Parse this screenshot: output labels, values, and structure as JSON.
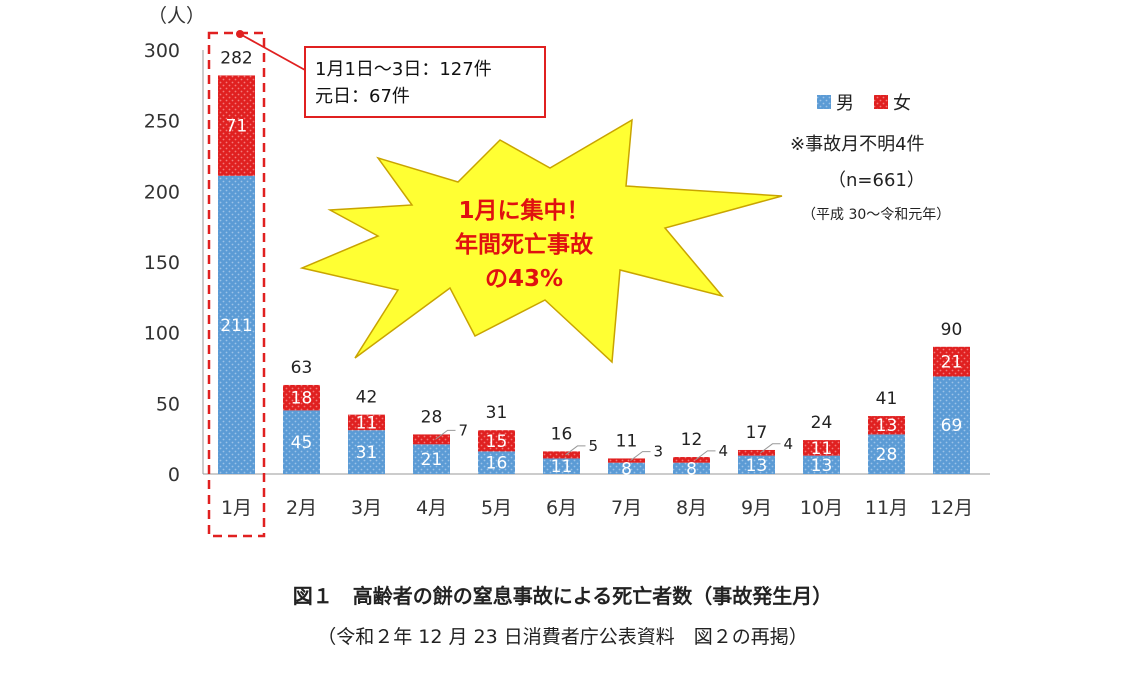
{
  "chart_data": {
    "type": "bar",
    "stacked": true,
    "ylabel": "（人）",
    "ylim": [
      0,
      300
    ],
    "yticks": [
      0,
      50,
      100,
      150,
      200,
      250,
      300
    ],
    "categories": [
      "1月",
      "2月",
      "3月",
      "4月",
      "5月",
      "6月",
      "7月",
      "8月",
      "9月",
      "10月",
      "11月",
      "12月"
    ],
    "series": [
      {
        "name": "男",
        "color": "#5b9bd5",
        "values": [
          211,
          45,
          31,
          21,
          16,
          11,
          8,
          8,
          13,
          13,
          28,
          69
        ]
      },
      {
        "name": "女",
        "color": "#e02020",
        "values": [
          71,
          18,
          11,
          7,
          15,
          5,
          3,
          4,
          4,
          11,
          13,
          21
        ]
      }
    ],
    "totals": [
      282,
      63,
      42,
      28,
      31,
      16,
      11,
      12,
      17,
      24,
      41,
      90
    ],
    "legend_position": "top-right",
    "grid": false,
    "annotations": {
      "callout_line1": "1月1日～3日：127件",
      "callout_line2": "元日：67件",
      "burst_line1": "1月に集中！",
      "burst_line2": "年間死亡事故",
      "burst_line3": "の43%",
      "note_unknown": "※事故月不明4件",
      "note_n": "（n=661）",
      "note_period": "（平成 30～令和元年）"
    }
  },
  "caption": {
    "line1": "図１　高齢者の餅の窒息事故による死亡者数（事故発生月）",
    "line2": "（令和２年 12 月 23 日消費者庁公表資料　図２の再掲）"
  }
}
